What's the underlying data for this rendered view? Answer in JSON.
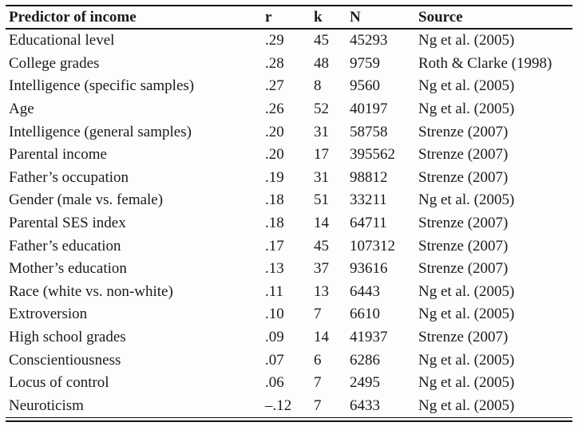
{
  "colors": {
    "background": "#fdfdfd",
    "text": "#1b1b1b",
    "rule": "#151515"
  },
  "table": {
    "columns": [
      "Predictor of income",
      "r",
      "k",
      "N",
      "Source"
    ],
    "rows": [
      {
        "predictor": "Educational level",
        "r": ".29",
        "k": "45",
        "n": "45293",
        "source": "Ng et al. (2005)"
      },
      {
        "predictor": "College grades",
        "r": ".28",
        "k": "48",
        "n": "9759",
        "source": "Roth & Clarke (1998)"
      },
      {
        "predictor": "Intelligence (specific samples)",
        "r": ".27",
        "k": "8",
        "n": "9560",
        "source": "Ng et al. (2005)"
      },
      {
        "predictor": "Age",
        "r": ".26",
        "k": "52",
        "n": "40197",
        "source": "Ng et al. (2005)"
      },
      {
        "predictor": "Intelligence (general samples)",
        "r": ".20",
        "k": "31",
        "n": "58758",
        "source": "Strenze (2007)"
      },
      {
        "predictor": "Parental income",
        "r": ".20",
        "k": "17",
        "n": "395562",
        "source": "Strenze (2007)"
      },
      {
        "predictor": "Father’s occupation",
        "r": ".19",
        "k": "31",
        "n": "98812",
        "source": "Strenze (2007)"
      },
      {
        "predictor": "Gender (male vs. female)",
        "r": ".18",
        "k": "51",
        "n": "33211",
        "source": "Ng et al. (2005)"
      },
      {
        "predictor": "Parental SES index",
        "r": ".18",
        "k": "14",
        "n": "64711",
        "source": "Strenze (2007)"
      },
      {
        "predictor": "Father’s education",
        "r": ".17",
        "k": "45",
        "n": "107312",
        "source": "Strenze (2007)"
      },
      {
        "predictor": "Mother’s education",
        "r": ".13",
        "k": "37",
        "n": "93616",
        "source": "Strenze (2007)"
      },
      {
        "predictor": "Race (white vs. non-white)",
        "r": ".11",
        "k": "13",
        "n": "6443",
        "source": "Ng et al. (2005)"
      },
      {
        "predictor": "Extroversion",
        "r": ".10",
        "k": "7",
        "n": "6610",
        "source": "Ng et al. (2005)"
      },
      {
        "predictor": "High school grades",
        "r": ".09",
        "k": "14",
        "n": "41937",
        "source": "Strenze (2007)"
      },
      {
        "predictor": "Conscientiousness",
        "r": ".07",
        "k": "6",
        "n": "6286",
        "source": "Ng et al. (2005)"
      },
      {
        "predictor": "Locus of control",
        "r": ".06",
        "k": "7",
        "n": "2495",
        "source": "Ng et al. (2005)"
      },
      {
        "predictor": "Neuroticism",
        "r": "–.12",
        "k": "7",
        "n": "6433",
        "source": "Ng et al. (2005)"
      }
    ]
  }
}
